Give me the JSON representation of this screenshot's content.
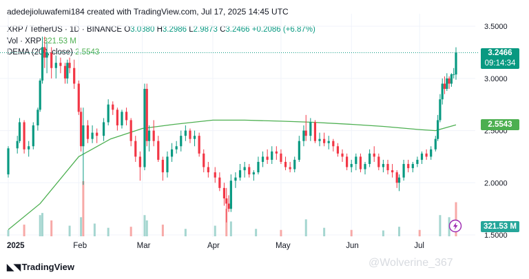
{
  "header": {
    "text": "adedejioluwafemi184 created with TradingView.com, Jul 17, 2025 14:45 UTC"
  },
  "legend": {
    "symbol": "XRP / TetherUS · 1D · BINANCE",
    "o_label": "O",
    "o": "3.0380",
    "h_label": "H",
    "h": "3.2986",
    "l_label": "L",
    "l": "2.9873",
    "c_label": "C",
    "c": "3.2466",
    "change": "+0.2086 (+6.87%)",
    "vol_label": "Vol · XRP",
    "vol": "321.53 M",
    "dema_label": "DEMA (200, close)",
    "dema": "2.5543"
  },
  "price_tags": {
    "last": "3.2466",
    "countdown": "09:14:34",
    "dema": "2.5543",
    "volume": "321.53 M"
  },
  "footer": {
    "logo_text": "TradingView"
  },
  "watermark": {
    "text": "@Wolverine_367"
  },
  "colors": {
    "up": "#089981",
    "down": "#f23645",
    "dema": "#4caf50",
    "vol_up": "#a5d6d0",
    "vol_down": "#f7a9a7"
  },
  "chart_data": {
    "type": "candlestick",
    "title": "XRP / TetherUS · 1D · BINANCE",
    "x_tick_labels": [
      "2025",
      "Feb",
      "Mar",
      "Apr",
      "May",
      "Jun",
      "Jul"
    ],
    "y_tick_labels": [
      "3.5000",
      "3.0000",
      "2.5000",
      "2.0000",
      "1.5000"
    ],
    "ylim": [
      1.48,
      3.62
    ],
    "x_start": "2025-01-01",
    "x_end": "2025-07-17",
    "ohlc": [
      [
        "2025-01-01",
        2.08,
        2.35,
        2.05,
        2.33
      ],
      [
        "2025-01-05",
        2.33,
        2.45,
        2.28,
        2.4
      ],
      [
        "2025-01-06",
        2.4,
        2.62,
        2.38,
        2.58
      ],
      [
        "2025-01-08",
        2.58,
        2.6,
        2.28,
        2.32
      ],
      [
        "2025-01-10",
        2.32,
        2.4,
        2.25,
        2.35
      ],
      [
        "2025-01-12",
        2.35,
        2.58,
        2.32,
        2.55
      ],
      [
        "2025-01-14",
        2.55,
        2.72,
        2.5,
        2.7
      ],
      [
        "2025-01-15",
        2.7,
        3.0,
        2.68,
        2.98
      ],
      [
        "2025-01-16",
        2.98,
        3.4,
        2.95,
        3.3
      ],
      [
        "2025-01-17",
        3.3,
        3.4,
        3.1,
        3.2
      ],
      [
        "2025-01-18",
        3.2,
        3.35,
        3.05,
        3.25
      ],
      [
        "2025-01-20",
        3.25,
        3.3,
        3.0,
        3.1
      ],
      [
        "2025-01-22",
        3.1,
        3.22,
        3.0,
        3.15
      ],
      [
        "2025-01-24",
        3.15,
        3.2,
        3.05,
        3.12
      ],
      [
        "2025-01-26",
        3.12,
        3.15,
        2.95,
        3.0
      ],
      [
        "2025-01-27",
        3.0,
        3.18,
        2.95,
        3.15
      ],
      [
        "2025-01-28",
        3.15,
        3.2,
        3.05,
        3.1
      ],
      [
        "2025-01-30",
        3.1,
        3.18,
        2.9,
        2.95
      ],
      [
        "2025-02-01",
        2.95,
        2.98,
        2.65,
        2.68
      ],
      [
        "2025-02-02",
        2.68,
        2.72,
        2.3,
        2.35
      ],
      [
        "2025-02-03",
        2.35,
        2.72,
        1.98,
        2.55
      ],
      [
        "2025-02-05",
        2.55,
        2.6,
        2.38,
        2.42
      ],
      [
        "2025-02-07",
        2.42,
        2.55,
        2.38,
        2.48
      ],
      [
        "2025-02-09",
        2.48,
        2.52,
        2.38,
        2.45
      ],
      [
        "2025-02-12",
        2.45,
        2.62,
        2.4,
        2.58
      ],
      [
        "2025-02-14",
        2.58,
        2.8,
        2.55,
        2.75
      ],
      [
        "2025-02-16",
        2.75,
        2.78,
        2.65,
        2.7
      ],
      [
        "2025-02-18",
        2.7,
        2.72,
        2.5,
        2.55
      ],
      [
        "2025-02-20",
        2.55,
        2.7,
        2.52,
        2.68
      ],
      [
        "2025-02-22",
        2.68,
        2.72,
        2.55,
        2.6
      ],
      [
        "2025-02-24",
        2.6,
        2.62,
        2.35,
        2.4
      ],
      [
        "2025-02-26",
        2.4,
        2.45,
        2.2,
        2.25
      ],
      [
        "2025-02-28",
        2.25,
        2.3,
        2.02,
        2.15
      ],
      [
        "2025-03-02",
        2.15,
        2.95,
        2.12,
        2.9
      ],
      [
        "2025-03-03",
        2.9,
        2.95,
        2.35,
        2.4
      ],
      [
        "2025-03-04",
        2.4,
        2.55,
        2.3,
        2.5
      ],
      [
        "2025-03-06",
        2.5,
        2.6,
        2.35,
        2.4
      ],
      [
        "2025-03-08",
        2.4,
        2.45,
        2.2,
        2.22
      ],
      [
        "2025-03-10",
        2.22,
        2.25,
        2.02,
        2.1
      ],
      [
        "2025-03-12",
        2.1,
        2.3,
        2.05,
        2.25
      ],
      [
        "2025-03-14",
        2.25,
        2.38,
        2.2,
        2.32
      ],
      [
        "2025-03-16",
        2.32,
        2.4,
        2.28,
        2.35
      ],
      [
        "2025-03-18",
        2.35,
        2.5,
        2.3,
        2.45
      ],
      [
        "2025-03-20",
        2.45,
        2.55,
        2.4,
        2.5
      ],
      [
        "2025-03-22",
        2.5,
        2.52,
        2.38,
        2.42
      ],
      [
        "2025-03-24",
        2.42,
        2.5,
        2.35,
        2.45
      ],
      [
        "2025-03-26",
        2.45,
        2.48,
        2.25,
        2.28
      ],
      [
        "2025-03-28",
        2.28,
        2.32,
        2.1,
        2.15
      ],
      [
        "2025-03-30",
        2.15,
        2.2,
        2.05,
        2.1
      ],
      [
        "2025-04-02",
        2.1,
        2.15,
        2.0,
        2.05
      ],
      [
        "2025-04-04",
        2.05,
        2.1,
        1.92,
        1.95
      ],
      [
        "2025-04-06",
        1.95,
        2.0,
        1.78,
        1.85
      ],
      [
        "2025-04-07",
        1.85,
        1.95,
        1.62,
        1.8
      ],
      [
        "2025-04-08",
        1.8,
        1.88,
        1.72,
        1.75
      ],
      [
        "2025-04-09",
        1.75,
        2.08,
        1.72,
        2.02
      ],
      [
        "2025-04-11",
        2.02,
        2.1,
        1.95,
        2.05
      ],
      [
        "2025-04-13",
        2.05,
        2.18,
        2.02,
        2.12
      ],
      [
        "2025-04-15",
        2.12,
        2.2,
        2.05,
        2.15
      ],
      [
        "2025-04-17",
        2.15,
        2.18,
        2.05,
        2.08
      ],
      [
        "2025-04-19",
        2.08,
        2.12,
        2.02,
        2.1
      ],
      [
        "2025-04-21",
        2.1,
        2.25,
        2.08,
        2.2
      ],
      [
        "2025-04-23",
        2.2,
        2.3,
        2.15,
        2.25
      ],
      [
        "2025-04-25",
        2.25,
        2.32,
        2.18,
        2.22
      ],
      [
        "2025-04-27",
        2.22,
        2.35,
        2.18,
        2.3
      ],
      [
        "2025-04-29",
        2.3,
        2.35,
        2.22,
        2.28
      ],
      [
        "2025-05-01",
        2.28,
        2.32,
        2.18,
        2.2
      ],
      [
        "2025-05-03",
        2.2,
        2.25,
        2.12,
        2.15
      ],
      [
        "2025-05-05",
        2.15,
        2.2,
        2.1,
        2.13
      ],
      [
        "2025-05-07",
        2.13,
        2.25,
        2.1,
        2.22
      ],
      [
        "2025-05-09",
        2.22,
        2.45,
        2.2,
        2.4
      ],
      [
        "2025-05-11",
        2.4,
        2.55,
        2.35,
        2.5
      ],
      [
        "2025-05-12",
        2.5,
        2.65,
        2.4,
        2.45
      ],
      [
        "2025-05-14",
        2.45,
        2.62,
        2.4,
        2.58
      ],
      [
        "2025-05-16",
        2.58,
        2.6,
        2.38,
        2.4
      ],
      [
        "2025-05-18",
        2.4,
        2.48,
        2.35,
        2.42
      ],
      [
        "2025-05-20",
        2.42,
        2.48,
        2.35,
        2.38
      ],
      [
        "2025-05-22",
        2.38,
        2.45,
        2.32,
        2.4
      ],
      [
        "2025-05-24",
        2.4,
        2.42,
        2.3,
        2.35
      ],
      [
        "2025-05-26",
        2.35,
        2.38,
        2.25,
        2.28
      ],
      [
        "2025-05-28",
        2.28,
        2.32,
        2.2,
        2.25
      ],
      [
        "2025-05-30",
        2.25,
        2.28,
        2.12,
        2.15
      ],
      [
        "2025-06-01",
        2.15,
        2.22,
        2.1,
        2.18
      ],
      [
        "2025-06-03",
        2.18,
        2.28,
        2.12,
        2.25
      ],
      [
        "2025-06-05",
        2.25,
        2.28,
        2.1,
        2.13
      ],
      [
        "2025-06-07",
        2.13,
        2.2,
        2.08,
        2.18
      ],
      [
        "2025-06-09",
        2.18,
        2.32,
        2.15,
        2.28
      ],
      [
        "2025-06-11",
        2.28,
        2.35,
        2.2,
        2.25
      ],
      [
        "2025-06-13",
        2.25,
        2.28,
        2.12,
        2.15
      ],
      [
        "2025-06-15",
        2.15,
        2.22,
        2.1,
        2.18
      ],
      [
        "2025-06-17",
        2.18,
        2.22,
        2.08,
        2.12
      ],
      [
        "2025-06-19",
        2.12,
        2.18,
        2.05,
        2.1
      ],
      [
        "2025-06-21",
        2.1,
        2.12,
        1.95,
        2.0
      ],
      [
        "2025-06-22",
        2.0,
        2.08,
        1.92,
        2.05
      ],
      [
        "2025-06-24",
        2.05,
        2.22,
        2.02,
        2.18
      ],
      [
        "2025-06-26",
        2.18,
        2.22,
        2.1,
        2.14
      ],
      [
        "2025-06-28",
        2.14,
        2.2,
        2.1,
        2.18
      ],
      [
        "2025-06-30",
        2.18,
        2.25,
        2.15,
        2.22
      ],
      [
        "2025-07-02",
        2.22,
        2.3,
        2.18,
        2.28
      ],
      [
        "2025-07-04",
        2.28,
        2.32,
        2.22,
        2.25
      ],
      [
        "2025-07-06",
        2.25,
        2.35,
        2.22,
        2.32
      ],
      [
        "2025-07-08",
        2.32,
        2.45,
        2.3,
        2.42
      ],
      [
        "2025-07-09",
        2.42,
        2.65,
        2.4,
        2.6
      ],
      [
        "2025-07-10",
        2.6,
        2.85,
        2.58,
        2.8
      ],
      [
        "2025-07-11",
        2.8,
        3.0,
        2.75,
        2.95
      ],
      [
        "2025-07-12",
        2.95,
        3.02,
        2.85,
        2.9
      ],
      [
        "2025-07-13",
        2.9,
        3.05,
        2.88,
        3.0
      ],
      [
        "2025-07-14",
        3.0,
        3.02,
        2.9,
        2.95
      ],
      [
        "2025-07-15",
        2.95,
        3.05,
        2.92,
        3.04
      ],
      [
        "2025-07-16",
        3.04,
        3.1,
        3.0,
        3.04
      ],
      [
        "2025-07-17",
        3.038,
        3.2986,
        2.9873,
        3.2466
      ]
    ],
    "dema_200": [
      [
        "2025-01-01",
        1.55
      ],
      [
        "2025-01-15",
        1.8
      ],
      [
        "2025-02-01",
        2.25
      ],
      [
        "2025-02-15",
        2.42
      ],
      [
        "2025-03-01",
        2.52
      ],
      [
        "2025-03-15",
        2.56
      ],
      [
        "2025-04-01",
        2.6
      ],
      [
        "2025-04-15",
        2.6
      ],
      [
        "2025-05-01",
        2.59
      ],
      [
        "2025-05-15",
        2.58
      ],
      [
        "2025-06-01",
        2.56
      ],
      [
        "2025-06-15",
        2.54
      ],
      [
        "2025-07-01",
        2.51
      ],
      [
        "2025-07-08",
        2.5
      ],
      [
        "2025-07-17",
        2.5543
      ]
    ],
    "volume_M": [
      [
        "2025-01-01",
        60
      ],
      [
        "2025-01-08",
        110
      ],
      [
        "2025-01-15",
        200
      ],
      [
        "2025-01-16",
        220
      ],
      [
        "2025-01-20",
        150
      ],
      [
        "2025-01-28",
        100
      ],
      [
        "2025-02-02",
        180
      ],
      [
        "2025-02-03",
        520
      ],
      [
        "2025-02-08",
        120
      ],
      [
        "2025-02-14",
        80
      ],
      [
        "2025-02-24",
        90
      ],
      [
        "2025-03-02",
        200
      ],
      [
        "2025-03-03",
        150
      ],
      [
        "2025-03-10",
        110
      ],
      [
        "2025-03-20",
        70
      ],
      [
        "2025-04-02",
        100
      ],
      [
        "2025-04-07",
        260
      ],
      [
        "2025-04-09",
        140
      ],
      [
        "2025-04-20",
        70
      ],
      [
        "2025-05-01",
        60
      ],
      [
        "2025-05-12",
        160
      ],
      [
        "2025-05-20",
        80
      ],
      [
        "2025-06-01",
        60
      ],
      [
        "2025-06-15",
        55
      ],
      [
        "2025-06-22",
        90
      ],
      [
        "2025-07-01",
        60
      ],
      [
        "2025-07-10",
        200
      ],
      [
        "2025-07-14",
        180
      ],
      [
        "2025-07-17",
        321.53
      ]
    ]
  }
}
